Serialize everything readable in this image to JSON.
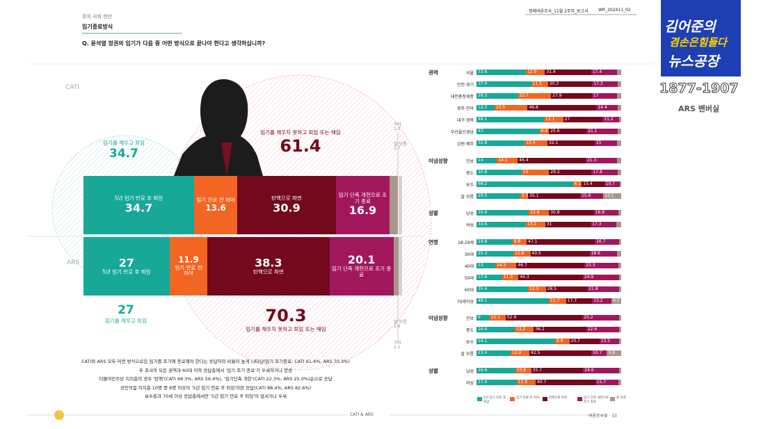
{
  "header": {
    "section": "정치 사회 현안",
    "topic": "임기종료방식",
    "question": "Q. 윤석열 정권의 임기가 다음 중 어떤 방식으로 끝나야 한다고 생각하십니까?",
    "report": "정례여론조사_11월 2주차_보고서",
    "code": "WR_202411_02"
  },
  "logo": {
    "line1": "김어준의",
    "line2": "겸손은힘들다",
    "line3": "뉴스공장",
    "phone": "1877-1907",
    "caption": "ARS 밴버실"
  },
  "chart_data": [
    {
      "type": "stacked-bar",
      "categories": [
        "CATI",
        "ARS"
      ],
      "series": [
        {
          "name": "5년 임기 만료 후 퇴임",
          "color": "#17a898",
          "values": [
            34.7,
            27.0
          ]
        },
        {
          "name": "임기 만료 전 하야",
          "color": "#f26522",
          "values": [
            13.6,
            11.9
          ]
        },
        {
          "name": "탄핵으로 파면",
          "color": "#74081c",
          "values": [
            30.9,
            38.3
          ]
        },
        {
          "name": "임기 단축 개헌으로 조기 종료",
          "color": "#a2175c",
          "values": [
            16.9,
            20.1
          ]
        },
        {
          "name": "잘 모름",
          "color": "#a8968c",
          "values": [
            2.7,
            1.6
          ]
        },
        {
          "name": "기타",
          "color": "#d9d0ca",
          "values": [
            1.3,
            1.1
          ]
        }
      ],
      "totals": [
        {
          "name": "임기를 채우고 퇴임",
          "color": "#17a898",
          "values": [
            34.7,
            27.0
          ]
        },
        {
          "name": "임기를 채우지 못하고 퇴임 또는 해임",
          "color": "#74081c",
          "values": [
            61.4,
            70.3
          ]
        }
      ]
    },
    {
      "type": "stacked-bar-groups",
      "series": [
        {
          "name": "5년 임기 만료 후 퇴임",
          "color": "#17a898"
        },
        {
          "name": "임기 만료 전 하야",
          "color": "#f26522"
        },
        {
          "name": "탄핵으로 파면",
          "color": "#74081c"
        },
        {
          "name": "임기 단축 개헌으로 조기 종료",
          "color": "#a2175c"
        },
        {
          "name": "잘 모름",
          "color": "#a8968c"
        }
      ],
      "groups": [
        {
          "name": "권역",
          "rows": [
            {
              "label": "서울",
              "values": [
                33.6,
                12.9,
                31.4,
                17.4,
                3.0
              ]
            },
            {
              "label": "인천·경기",
              "values": [
                37.4,
                11.5,
                30.3,
                17.3,
                2.5
              ]
            },
            {
              "label": "대전충청세종",
              "values": [
                28.3,
                22.7,
                27.9,
                17.0,
                3.0
              ]
            },
            {
              "label": "광주·전라",
              "values": [
                12.3,
                22.5,
                46.8,
                14.4,
                2.5
              ]
            },
            {
              "label": "대구·경북",
              "values": [
                46.1,
                13.1,
                27.0,
                11.2,
                1.5
              ]
            },
            {
              "label": "부산울산경남",
              "values": [
                43.0,
                6.4,
                25.6,
                21.1,
                2.5
              ]
            },
            {
              "label": "강원·제주",
              "values": [
                32.8,
                15.4,
                32.1,
                15.0,
                3.0
              ]
            }
          ]
        },
        {
          "name": "이념성향",
          "rows": [
            {
              "label": "진보",
              "values": [
                14.0,
                14.1,
                46.4,
                21.3,
                3.0
              ]
            },
            {
              "label": "중도",
              "values": [
                30.8,
                19.0,
                29.2,
                17.8,
                2.5
              ]
            },
            {
              "label": "보수",
              "values": [
                66.2,
                6.1,
                15.4,
                10.7,
                1.0
              ]
            },
            {
              "label": "잘 모름",
              "values": [
                29.5,
                5.3,
                35.1,
                15.6,
                12.1
              ]
            }
          ]
        },
        {
          "name": "성별",
          "rows": [
            {
              "label": "남성",
              "values": [
                35.9,
                13.9,
                30.8,
                16.8,
                2.0
              ]
            },
            {
              "label": "여성",
              "values": [
                33.6,
                13.2,
                31.0,
                17.3,
                3.5
              ]
            }
          ]
        },
        {
          "name": "연령",
          "rows": [
            {
              "label": "18-29세",
              "values": [
                24.8,
                9.8,
                47.1,
                16.7,
                1.5
              ]
            },
            {
              "label": "30대",
              "values": [
                25.3,
                11.6,
                40.5,
                18.6,
                3.0
              ]
            },
            {
              "label": "40대",
              "values": [
                13.0,
                14.5,
                46.7,
                23.3,
                2.0
              ]
            },
            {
              "label": "50대",
              "values": [
                17.6,
                11.3,
                44.3,
                24.9,
                1.5
              ]
            },
            {
              "label": "60대",
              "values": [
                35.4,
                12.3,
                28.5,
                21.8,
                1.5
              ]
            },
            {
              "label": "70세이상",
              "values": [
                49.1,
                11.7,
                17.7,
                13.2,
                6.5
              ]
            }
          ]
        },
        {
          "name": "이념성향",
          "rows": [
            {
              "label": "진보",
              "values": [
                9.0,
                11.1,
                52.9,
                25.2,
                1.5
              ]
            },
            {
              "label": "중도",
              "values": [
                26.4,
                13.2,
                36.2,
                22.6,
                1.5
              ]
            },
            {
              "label": "보수",
              "values": [
                54.1,
                9.9,
                20.7,
                13.5,
                1.5
              ]
            },
            {
              "label": "잘 모름",
              "values": [
                23.4,
                12.9,
                42.5,
                10.7,
                9.8
              ]
            }
          ]
        },
        {
          "name": "성별",
          "rows": [
            {
              "label": "남성",
              "values": [
                26.6,
                10.9,
                35.7,
                24.6,
                1.5
              ]
            },
            {
              "label": "여성",
              "values": [
                27.4,
                12.9,
                40.7,
                15.7,
                2.0
              ]
            }
          ]
        }
      ]
    }
  ],
  "notes": [
    "CATI와 ARS 모두 어떤 방식으로든 임기를 조기에 종료해야 한다는 응답자의 비율이 높게 나타남(임기 조기종료: CATI 61.4%, ARS 70.3%)",
    "두 조사의 모든 권역과 60대 이하 응답층에서 '임기 조기 종료'가 우세하거나 양성",
    "더불어민주당 지지층의 경우 '탄핵'(CATI 48.3%, ARS 56.4%), '임기단축 개헌'(CATI 22.3%, ARS 25.0%)순으로 응답",
    "국민의힘 지지층 10명 중 8명 이상이 '5년 임기 만료 후 퇴임'이란 응답(CATI 88.4%, ARS 82.6%)",
    "보수층과 70세 이상 응답층에서만 '5년 임기 만료 후 퇴임'이 앞서거나 우세"
  ],
  "footer": {
    "center": "CATI & ARS",
    "page": "여론조사꽃 · 33"
  }
}
